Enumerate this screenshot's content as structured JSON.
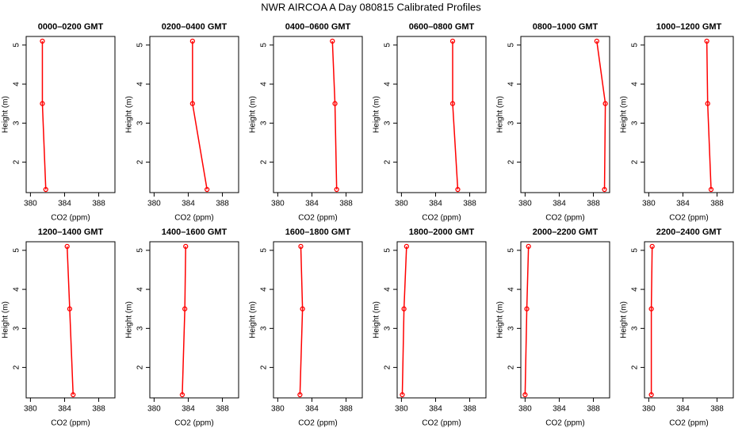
{
  "title": "NWR AIRCOA A  Day 080815  Calibrated Profiles",
  "chart_data": [
    {
      "type": "line",
      "title": "0000–0200 GMT",
      "xlabel": "CO2 (ppm)",
      "ylabel": "Height (m)",
      "color": "#ff0000",
      "x": [
        381.8,
        381.4,
        381.4
      ],
      "y": [
        1.3,
        3.5,
        5.1
      ],
      "xlim": [
        379.5,
        389.9
      ],
      "ylim": [
        1.22,
        5.22
      ],
      "xticks": [
        380,
        384,
        388
      ],
      "yticks": [
        2,
        3,
        4,
        5
      ]
    },
    {
      "type": "line",
      "title": "0200–0400 GMT",
      "xlabel": "CO2 (ppm)",
      "ylabel": "Height (m)",
      "color": "#ff0000",
      "x": [
        386.2,
        384.5,
        384.5
      ],
      "y": [
        1.3,
        3.5,
        5.1
      ],
      "xlim": [
        379.5,
        389.9
      ],
      "ylim": [
        1.22,
        5.22
      ],
      "xticks": [
        380,
        384,
        388
      ],
      "yticks": [
        2,
        3,
        4,
        5
      ]
    },
    {
      "type": "line",
      "title": "0400–0600 GMT",
      "xlabel": "CO2 (ppm)",
      "ylabel": "Height (m)",
      "color": "#ff0000",
      "x": [
        386.9,
        386.7,
        386.4
      ],
      "y": [
        1.3,
        3.5,
        5.1
      ],
      "xlim": [
        379.5,
        389.9
      ],
      "ylim": [
        1.22,
        5.22
      ],
      "xticks": [
        380,
        384,
        388
      ],
      "yticks": [
        2,
        3,
        4,
        5
      ]
    },
    {
      "type": "line",
      "title": "0600–0800 GMT",
      "xlabel": "CO2 (ppm)",
      "ylabel": "Height (m)",
      "color": "#ff0000",
      "x": [
        386.6,
        386.0,
        386.0
      ],
      "y": [
        1.3,
        3.5,
        5.1
      ],
      "xlim": [
        379.5,
        389.9
      ],
      "ylim": [
        1.22,
        5.22
      ],
      "xticks": [
        380,
        384,
        388
      ],
      "yticks": [
        2,
        3,
        4,
        5
      ]
    },
    {
      "type": "line",
      "title": "0800–1000 GMT",
      "xlabel": "CO2 (ppm)",
      "ylabel": "Height (m)",
      "color": "#ff0000",
      "x": [
        389.3,
        389.4,
        388.4
      ],
      "y": [
        1.3,
        3.5,
        5.1
      ],
      "xlim": [
        379.5,
        389.9
      ],
      "ylim": [
        1.22,
        5.22
      ],
      "xticks": [
        380,
        384,
        388
      ],
      "yticks": [
        2,
        3,
        4,
        5
      ]
    },
    {
      "type": "line",
      "title": "1000–1200 GMT",
      "xlabel": "CO2 (ppm)",
      "ylabel": "Height (m)",
      "color": "#ff0000",
      "x": [
        387.3,
        386.9,
        386.8
      ],
      "y": [
        1.3,
        3.5,
        5.1
      ],
      "xlim": [
        379.5,
        389.9
      ],
      "ylim": [
        1.22,
        5.22
      ],
      "xticks": [
        380,
        384,
        388
      ],
      "yticks": [
        2,
        3,
        4,
        5
      ]
    },
    {
      "type": "line",
      "title": "1200–1400 GMT",
      "xlabel": "CO2 (ppm)",
      "ylabel": "Height (m)",
      "color": "#ff0000",
      "x": [
        385.0,
        384.6,
        384.3
      ],
      "y": [
        1.3,
        3.5,
        5.1
      ],
      "xlim": [
        379.5,
        389.9
      ],
      "ylim": [
        1.22,
        5.22
      ],
      "xticks": [
        380,
        384,
        388
      ],
      "yticks": [
        2,
        3,
        4,
        5
      ]
    },
    {
      "type": "line",
      "title": "1400–1600 GMT",
      "xlabel": "CO2 (ppm)",
      "ylabel": "Height (m)",
      "color": "#ff0000",
      "x": [
        383.3,
        383.6,
        383.7
      ],
      "y": [
        1.3,
        3.5,
        5.1
      ],
      "xlim": [
        379.5,
        389.9
      ],
      "ylim": [
        1.22,
        5.22
      ],
      "xticks": [
        380,
        384,
        388
      ],
      "yticks": [
        2,
        3,
        4,
        5
      ]
    },
    {
      "type": "line",
      "title": "1600–1800 GMT",
      "xlabel": "CO2 (ppm)",
      "ylabel": "Height (m)",
      "color": "#ff0000",
      "x": [
        382.6,
        382.9,
        382.7
      ],
      "y": [
        1.3,
        3.5,
        5.1
      ],
      "xlim": [
        379.5,
        389.9
      ],
      "ylim": [
        1.22,
        5.22
      ],
      "xticks": [
        380,
        384,
        388
      ],
      "yticks": [
        2,
        3,
        4,
        5
      ]
    },
    {
      "type": "line",
      "title": "1800–2000 GMT",
      "xlabel": "CO2 (ppm)",
      "ylabel": "Height (m)",
      "color": "#ff0000",
      "x": [
        380.1,
        380.3,
        380.6
      ],
      "y": [
        1.3,
        3.5,
        5.1
      ],
      "xlim": [
        379.5,
        389.9
      ],
      "ylim": [
        1.22,
        5.22
      ],
      "xticks": [
        380,
        384,
        388
      ],
      "yticks": [
        2,
        3,
        4,
        5
      ]
    },
    {
      "type": "line",
      "title": "2000–2200 GMT",
      "xlabel": "CO2 (ppm)",
      "ylabel": "Height (m)",
      "color": "#ff0000",
      "x": [
        380.0,
        380.2,
        380.4
      ],
      "y": [
        1.3,
        3.5,
        5.1
      ],
      "xlim": [
        379.5,
        389.9
      ],
      "ylim": [
        1.22,
        5.22
      ],
      "xticks": [
        380,
        384,
        388
      ],
      "yticks": [
        2,
        3,
        4,
        5
      ]
    },
    {
      "type": "line",
      "title": "2200–2400 GMT",
      "xlabel": "CO2 (ppm)",
      "ylabel": "Height (m)",
      "color": "#ff0000",
      "x": [
        380.3,
        380.3,
        380.4
      ],
      "y": [
        1.3,
        3.5,
        5.1
      ],
      "xlim": [
        379.5,
        389.9
      ],
      "ylim": [
        1.22,
        5.22
      ],
      "xticks": [
        380,
        384,
        388
      ],
      "yticks": [
        2,
        3,
        4,
        5
      ]
    }
  ]
}
